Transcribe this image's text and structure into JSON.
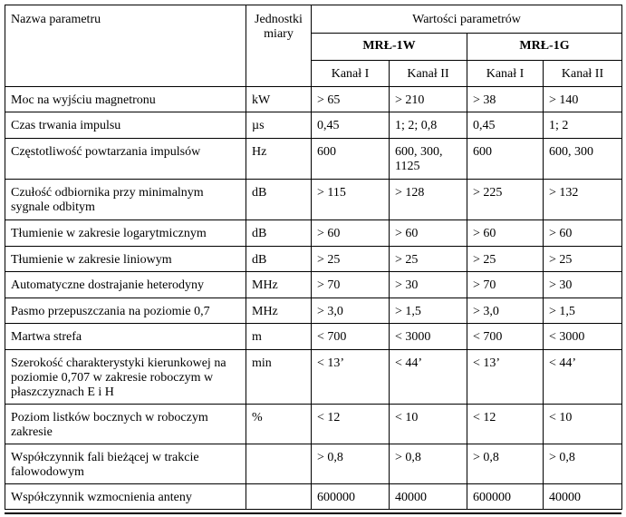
{
  "header": {
    "name": "Nazwa parametru",
    "unit": "Jednostki miary",
    "values": "Wartości parametrów",
    "models": [
      "MRŁ-1W",
      "MRŁ-1G"
    ],
    "channels": [
      "Kanał I",
      "Kanał II",
      "Kanał I",
      "Kanał II"
    ]
  },
  "rows": [
    {
      "name": "Moc na wyjściu magnetronu",
      "unit": "kW",
      "v": [
        "> 65",
        "> 210",
        "> 38",
        "> 140"
      ]
    },
    {
      "name": "Czas trwania impulsu",
      "unit": "µs",
      "v": [
        "0,45",
        "1; 2; 0,8",
        "0,45",
        "1; 2"
      ]
    },
    {
      "name": "Częstotliwość powtarzania impulsów",
      "unit": "Hz",
      "v": [
        "600",
        "600, 300, 1125",
        "600",
        "600, 300"
      ]
    },
    {
      "name": "Czułość odbiornika przy minimalnym sygnale odbitym",
      "unit": "dB",
      "v": [
        "> 115",
        "> 128",
        "> 225",
        "> 132"
      ]
    },
    {
      "name": "Tłumienie  w zakresie logarytmicznym",
      "unit": "dB",
      "v": [
        "> 60",
        "> 60",
        "> 60",
        "> 60"
      ]
    },
    {
      "name": "Tłumienie w zakresie liniowym",
      "unit": "dB",
      "v": [
        "> 25",
        "> 25",
        "> 25",
        "> 25"
      ]
    },
    {
      "name": "Automatyczne dostrajanie heterodyny",
      "unit": "MHz",
      "v": [
        "> 70",
        "> 30",
        "> 70",
        "> 30"
      ]
    },
    {
      "name": "Pasmo przepuszczania na poziomie 0,7",
      "unit": "MHz",
      "v": [
        "> 3,0",
        "> 1,5",
        "> 3,0",
        "> 1,5"
      ]
    },
    {
      "name": "Martwa strefa",
      "unit": "m",
      "v": [
        "< 700",
        "< 3000",
        "< 700",
        "< 3000"
      ]
    },
    {
      "name": "Szerokość charakterystyki kierunkowej na poziomie 0,707 w zakresie roboczym w płaszczyznach E i H",
      "unit": "min",
      "v": [
        "< 13’",
        "< 44’",
        "< 13’",
        "< 44’"
      ]
    },
    {
      "name": "Poziom listków bocznych w roboczym zakresie",
      "unit": "%",
      "v": [
        "< 12",
        "< 10",
        "< 12",
        "< 10"
      ]
    },
    {
      "name": "Współczynnik fali bieżącej w trakcie falowodowym",
      "unit": "",
      "v": [
        "> 0,8",
        "> 0,8",
        "> 0,8",
        "> 0,8"
      ]
    },
    {
      "name": "Współczynnik wzmocnienia anteny",
      "unit": "",
      "v": [
        "600000",
        "40000",
        "600000",
        "40000"
      ]
    }
  ]
}
